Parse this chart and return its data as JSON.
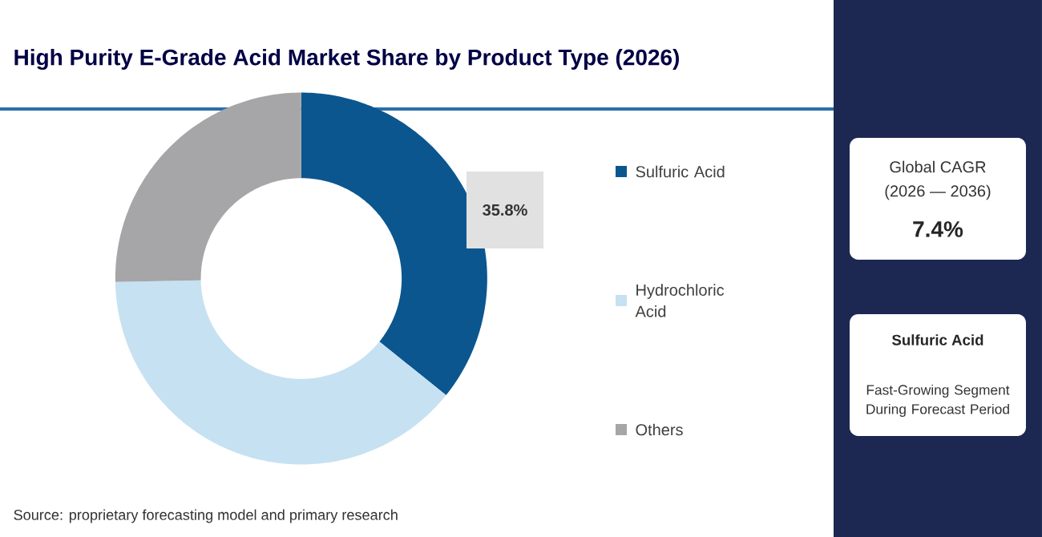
{
  "chart_data": {
    "type": "donut",
    "title": "High Purity E-Grade Acid Market Share by Product Type (2026)",
    "categories": [
      "Sulfuric Acid",
      "Hydrochloric Acid",
      "Others"
    ],
    "values": [
      35.8,
      38.9,
      25.3
    ],
    "colors": [
      "#0b568f",
      "#c6e1f2",
      "#a6a6a8"
    ],
    "value_labels": [
      "35.8%",
      null,
      null
    ],
    "legend": "right",
    "annotations": [
      "Global CAGR",
      "(2026 — 2036)",
      "7.4%",
      "Sulfuric Acid",
      "Fast-Growing Segment During Forecast Period",
      "Source: proprietary forecasting model and primary research"
    ]
  }
}
